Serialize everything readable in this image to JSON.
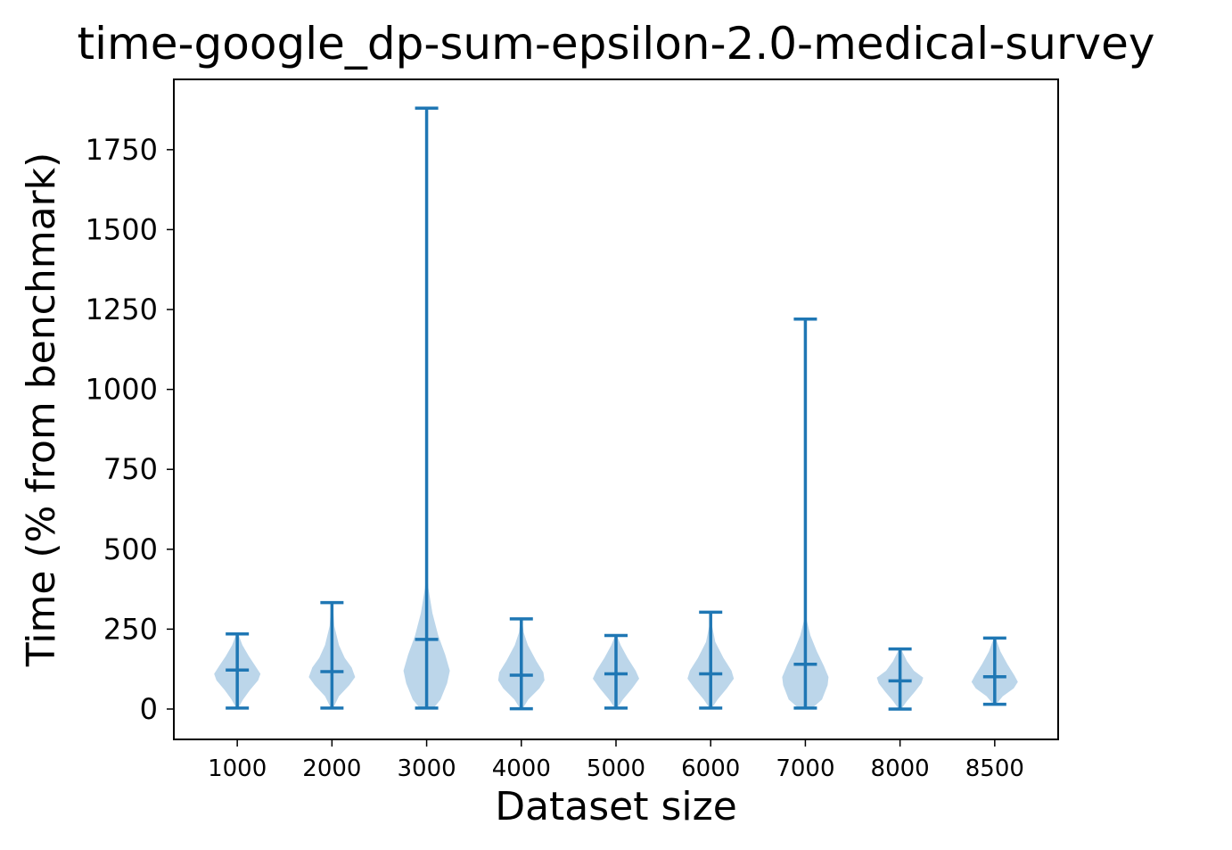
{
  "chart_data": {
    "type": "violin",
    "title": "time-google_dp-sum-epsilon-2.0-medical-survey",
    "xlabel": "Dataset size",
    "ylabel": "Time (% from benchmark)",
    "categories": [
      "1000",
      "2000",
      "3000",
      "4000",
      "5000",
      "6000",
      "7000",
      "8000",
      "8500"
    ],
    "ylim": [
      -95,
      1970
    ],
    "yticks": [
      0,
      250,
      500,
      750,
      1000,
      1250,
      1500,
      1750
    ],
    "ytick_labels": [
      "0",
      "250",
      "500",
      "750",
      "1000",
      "1250",
      "1500",
      "1750"
    ],
    "grid": false,
    "color": "#1f77b4",
    "fill_color": "#bcd6ea",
    "violins": [
      {
        "category": "1000",
        "min": 3,
        "max": 235,
        "mean": 122,
        "profile": [
          [
            3,
            0.04
          ],
          [
            30,
            0.25
          ],
          [
            60,
            0.55
          ],
          [
            90,
            0.9
          ],
          [
            110,
            1.0
          ],
          [
            135,
            0.78
          ],
          [
            165,
            0.5
          ],
          [
            200,
            0.22
          ],
          [
            235,
            0.04
          ]
        ]
      },
      {
        "category": "2000",
        "min": 3,
        "max": 333,
        "mean": 117,
        "profile": [
          [
            3,
            0.05
          ],
          [
            40,
            0.3
          ],
          [
            75,
            0.75
          ],
          [
            100,
            1.0
          ],
          [
            130,
            0.85
          ],
          [
            160,
            0.55
          ],
          [
            200,
            0.3
          ],
          [
            260,
            0.1
          ],
          [
            333,
            0.03
          ]
        ]
      },
      {
        "category": "3000",
        "min": 3,
        "max": 1880,
        "mean": 218,
        "profile": [
          [
            3,
            0.3
          ],
          [
            30,
            0.6
          ],
          [
            80,
            0.88
          ],
          [
            120,
            1.0
          ],
          [
            170,
            0.8
          ],
          [
            230,
            0.5
          ],
          [
            300,
            0.25
          ],
          [
            380,
            0.07
          ],
          [
            430,
            0.02
          ],
          [
            600,
            0.01
          ],
          [
            1880,
            0.01
          ]
        ]
      },
      {
        "category": "4000",
        "min": 1,
        "max": 282,
        "mean": 106,
        "profile": [
          [
            1,
            0.05
          ],
          [
            30,
            0.3
          ],
          [
            65,
            0.78
          ],
          [
            90,
            1.0
          ],
          [
            115,
            0.95
          ],
          [
            150,
            0.65
          ],
          [
            200,
            0.28
          ],
          [
            240,
            0.1
          ],
          [
            282,
            0.03
          ]
        ]
      },
      {
        "category": "5000",
        "min": 3,
        "max": 230,
        "mean": 110,
        "profile": [
          [
            3,
            0.05
          ],
          [
            30,
            0.3
          ],
          [
            65,
            0.7
          ],
          [
            95,
            1.0
          ],
          [
            120,
            0.85
          ],
          [
            160,
            0.5
          ],
          [
            200,
            0.2
          ],
          [
            230,
            0.04
          ]
        ]
      },
      {
        "category": "6000",
        "min": 3,
        "max": 303,
        "mean": 110,
        "profile": [
          [
            3,
            0.05
          ],
          [
            30,
            0.3
          ],
          [
            65,
            0.7
          ],
          [
            95,
            1.0
          ],
          [
            120,
            0.9
          ],
          [
            160,
            0.55
          ],
          [
            210,
            0.2
          ],
          [
            260,
            0.06
          ],
          [
            303,
            0.03
          ]
        ]
      },
      {
        "category": "7000",
        "min": 3,
        "max": 1220,
        "mean": 140,
        "profile": [
          [
            3,
            0.3
          ],
          [
            30,
            0.72
          ],
          [
            75,
            0.96
          ],
          [
            100,
            1.0
          ],
          [
            135,
            0.8
          ],
          [
            180,
            0.5
          ],
          [
            230,
            0.22
          ],
          [
            280,
            0.05
          ],
          [
            330,
            0.02
          ],
          [
            1220,
            0.01
          ]
        ]
      },
      {
        "category": "8000",
        "min": 0,
        "max": 188,
        "mean": 88,
        "profile": [
          [
            0,
            0.05
          ],
          [
            25,
            0.3
          ],
          [
            55,
            0.65
          ],
          [
            80,
            0.92
          ],
          [
            98,
            1.0
          ],
          [
            120,
            0.6
          ],
          [
            150,
            0.3
          ],
          [
            188,
            0.04
          ]
        ]
      },
      {
        "category": "8500",
        "min": 15,
        "max": 222,
        "mean": 101,
        "profile": [
          [
            15,
            0.06
          ],
          [
            40,
            0.35
          ],
          [
            65,
            0.82
          ],
          [
            85,
            1.0
          ],
          [
            105,
            0.85
          ],
          [
            140,
            0.55
          ],
          [
            180,
            0.25
          ],
          [
            222,
            0.04
          ]
        ]
      }
    ]
  }
}
